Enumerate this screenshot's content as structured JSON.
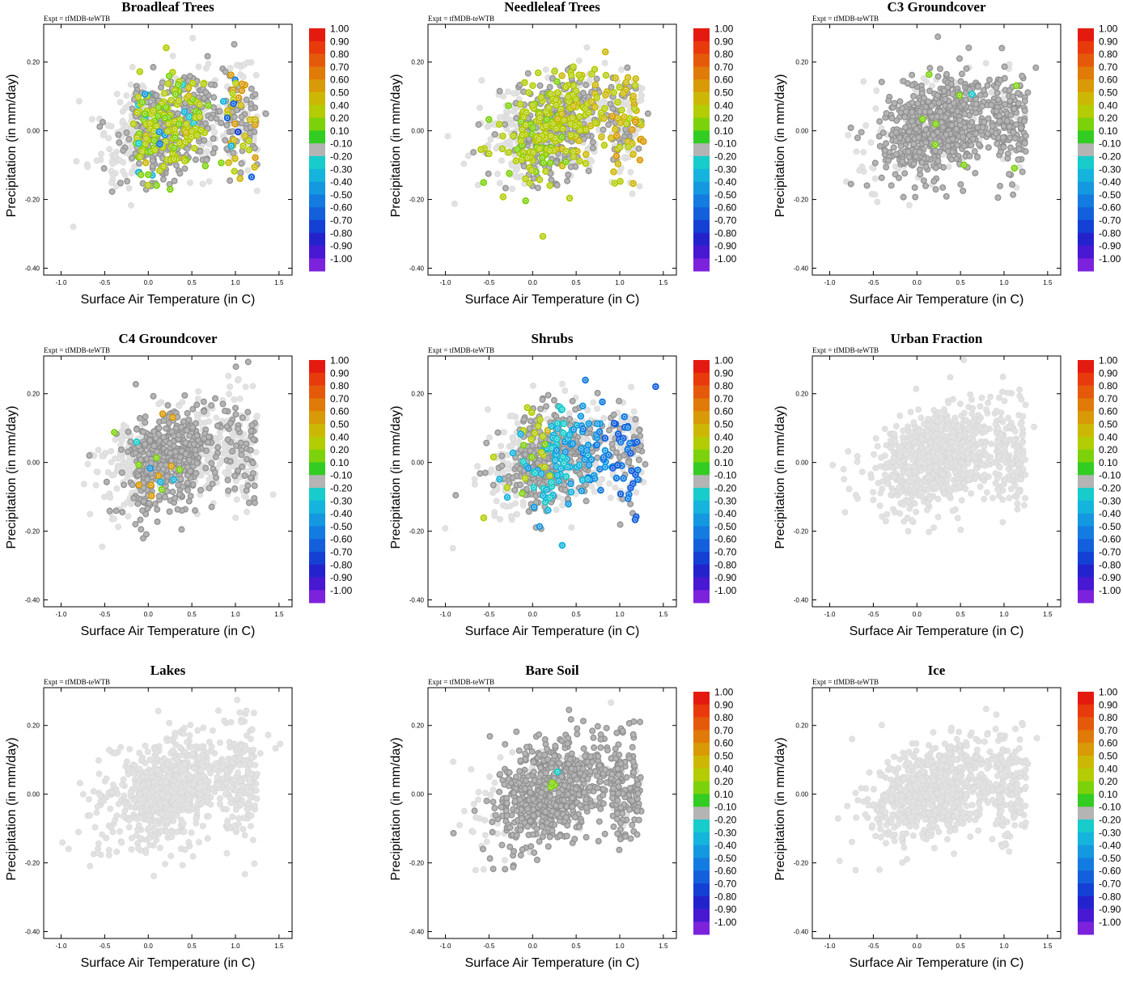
{
  "figure": {
    "experiment_label": "Expt = tfMDB-teWTB",
    "x_label": "Surface Air Temperature (in C)",
    "y_label": "Precipitation (in mm/day)",
    "x_ticks": [
      "-1.0",
      "-0.5",
      "0.0",
      "0.5",
      "1.0",
      "1.5"
    ],
    "y_ticks": [
      "0.20",
      "0.00",
      "-0.20",
      "-0.40"
    ],
    "colorbar": {
      "labels": [
        "1.00",
        "0.90",
        "0.80",
        "0.70",
        "0.60",
        "0.50",
        "0.40",
        "0.20",
        "0.10",
        "-0.10",
        "-0.20",
        "-0.30",
        "-0.40",
        "-0.50",
        "-0.60",
        "-0.70",
        "-0.80",
        "-0.90",
        "-1.00"
      ],
      "colors": [
        "#e41a10",
        "#e83a0c",
        "#e55a0a",
        "#e07a08",
        "#d89a06",
        "#ccb804",
        "#b4cc04",
        "#7cd20a",
        "#33cc22",
        "#b4b4b4",
        "#18cccc",
        "#14b4dc",
        "#1498e0",
        "#147ce0",
        "#1460dc",
        "#1440d4",
        "#2422cc",
        "#4818d2",
        "#7c22dc"
      ]
    }
  },
  "chart_data": [
    {
      "type": "scatter",
      "title": "Broadleaf Trees",
      "xlabel": "Surface Air Temperature (in C)",
      "ylabel": "Precipitation (in mm/day)",
      "xlim": [
        -1.2,
        1.65
      ],
      "ylim": [
        -0.42,
        0.31
      ],
      "seed": 11,
      "mode": "broadleaf",
      "colored_fraction": 0.26
    },
    {
      "type": "scatter",
      "title": "Needleleaf Trees",
      "xlabel": "Surface Air Temperature (in C)",
      "ylabel": "Precipitation (in mm/day)",
      "xlim": [
        -1.2,
        1.65
      ],
      "ylim": [
        -0.42,
        0.31
      ],
      "seed": 23,
      "mode": "needleleaf",
      "colored_fraction": 0.42
    },
    {
      "type": "scatter",
      "title": "C3 Groundcover",
      "xlabel": "Surface Air Temperature (in C)",
      "ylabel": "Precipitation (in mm/day)",
      "xlim": [
        -1.2,
        1.65
      ],
      "ylim": [
        -0.42,
        0.31
      ],
      "seed": 37,
      "mode": "c3",
      "colored_fraction": 0.01
    },
    {
      "type": "scatter",
      "title": "C4 Groundcover",
      "xlabel": "Surface Air Temperature (in C)",
      "ylabel": "Precipitation (in mm/day)",
      "xlim": [
        -1.2,
        1.65
      ],
      "ylim": [
        -0.42,
        0.31
      ],
      "seed": 41,
      "mode": "c4",
      "colored_fraction": 0.02
    },
    {
      "type": "scatter",
      "title": "Shrubs",
      "xlabel": "Surface Air Temperature (in C)",
      "ylabel": "Precipitation (in mm/day)",
      "xlim": [
        -1.2,
        1.65
      ],
      "ylim": [
        -0.42,
        0.31
      ],
      "seed": 53,
      "mode": "shrubs",
      "colored_fraction": 0.3
    },
    {
      "type": "scatter",
      "title": "Urban Fraction",
      "xlabel": "Surface Air Temperature (in C)",
      "ylabel": "Precipitation (in mm/day)",
      "xlim": [
        -1.2,
        1.65
      ],
      "ylim": [
        -0.42,
        0.31
      ],
      "seed": 67,
      "mode": "none",
      "colored_fraction": 0
    },
    {
      "type": "scatter",
      "title": "Lakes",
      "xlabel": "Surface Air Temperature (in C)",
      "ylabel": "Precipitation (in mm/day)",
      "xlim": [
        -1.2,
        1.65
      ],
      "ylim": [
        -0.42,
        0.31
      ],
      "seed": 71,
      "mode": "none",
      "colored_fraction": 0
    },
    {
      "type": "scatter",
      "title": "Bare Soil",
      "xlabel": "Surface Air Temperature (in C)",
      "ylabel": "Precipitation (in mm/day)",
      "xlim": [
        -1.2,
        1.65
      ],
      "ylim": [
        -0.42,
        0.31
      ],
      "seed": 83,
      "mode": "baresoil",
      "colored_fraction": 0.005
    },
    {
      "type": "scatter",
      "title": "Ice",
      "xlabel": "Surface Air Temperature (in C)",
      "ylabel": "Precipitation (in mm/day)",
      "xlim": [
        -1.2,
        1.65
      ],
      "ylim": [
        -0.42,
        0.31
      ],
      "seed": 97,
      "mode": "none",
      "colored_fraction": 0
    }
  ]
}
